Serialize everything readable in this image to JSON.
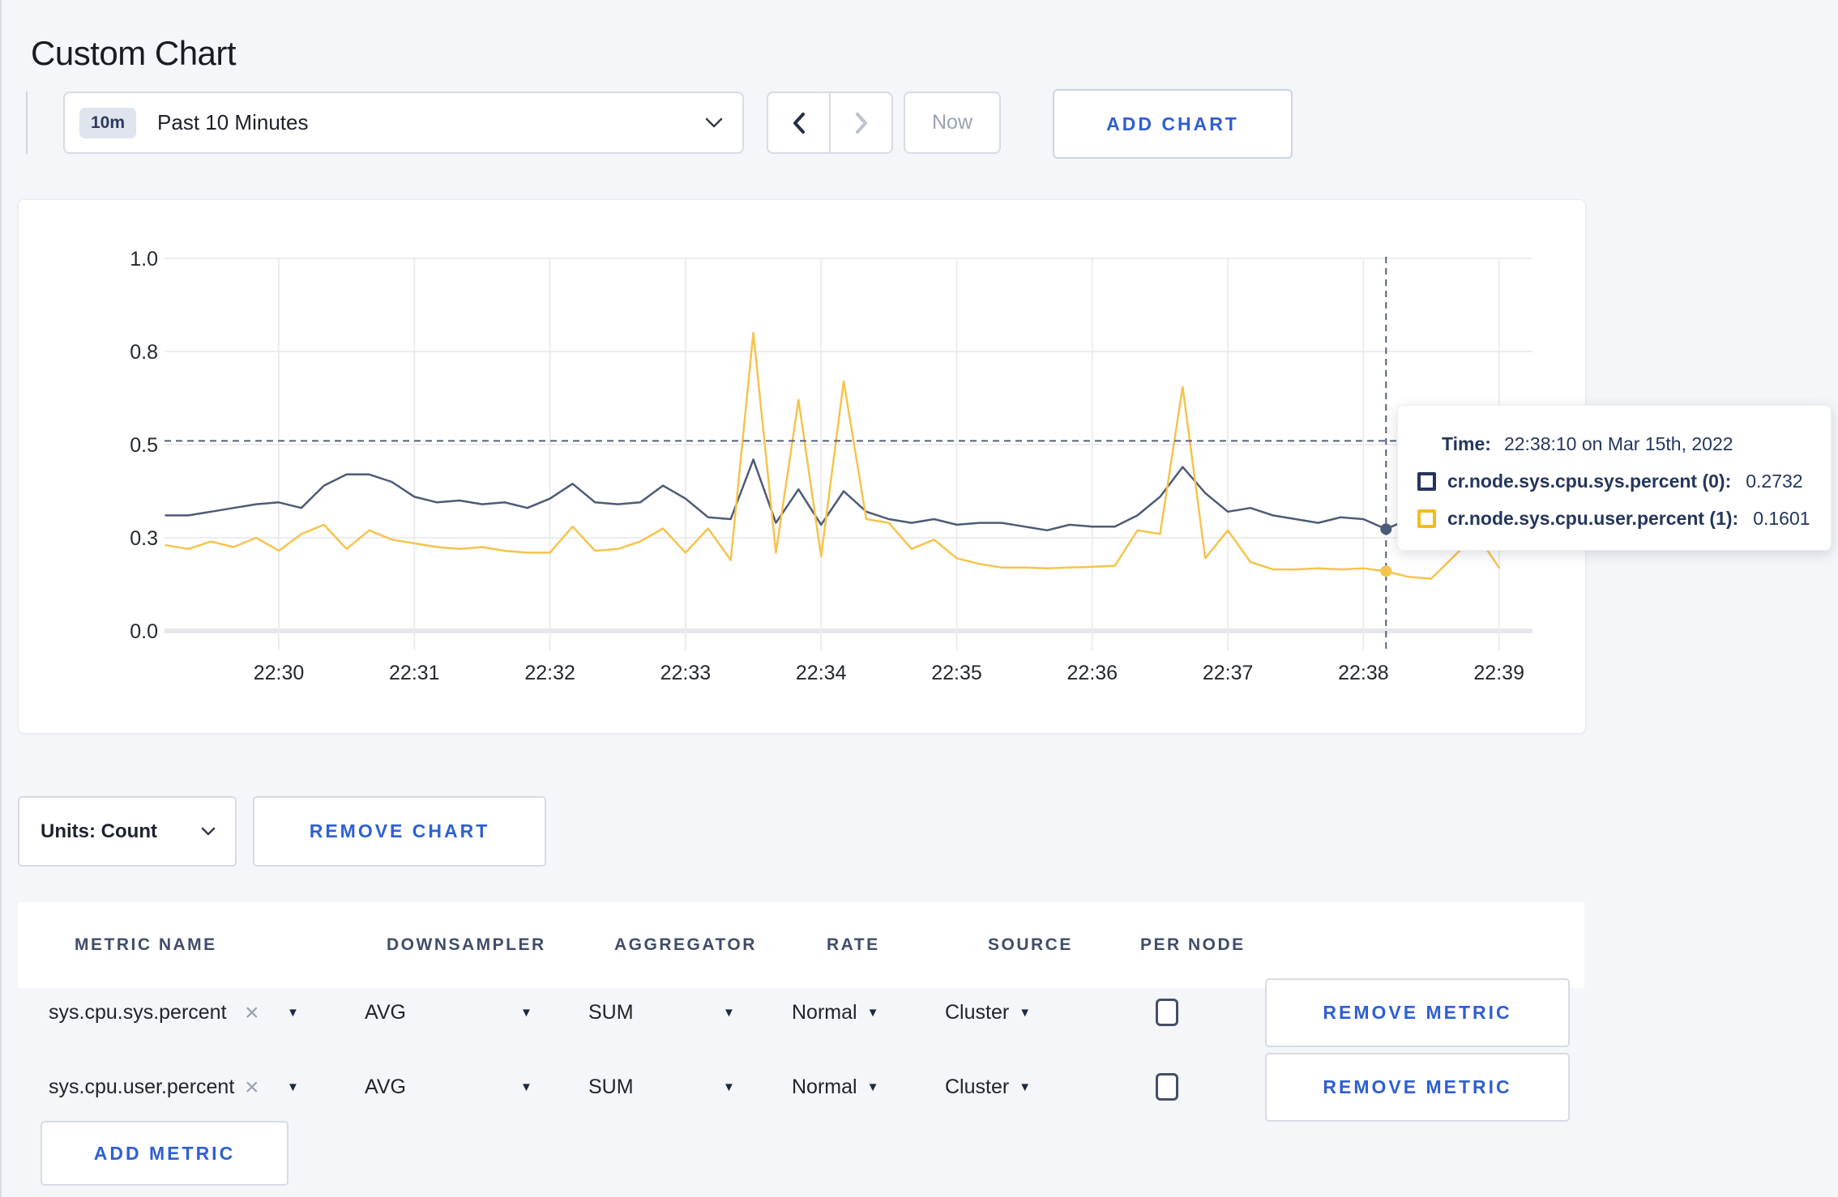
{
  "page_title": "Custom Chart",
  "toolbar": {
    "time_window_badge": "10m",
    "time_window_label": "Past 10 Minutes",
    "back_icon": "chevron-left",
    "forward_icon": "chevron-right",
    "now_label": "Now",
    "add_chart_label": "ADD CHART"
  },
  "chart_data": {
    "type": "line",
    "title": "",
    "xlabel": "",
    "ylabel": "",
    "ylim": [
      0,
      1
    ],
    "grid": true,
    "legend_position": "tooltip-only",
    "start_time": "22:29:10",
    "interval_seconds": 10,
    "first_tick_offset_seconds": 50,
    "x_ticks": [
      "22:30",
      "22:31",
      "22:32",
      "22:33",
      "22:34",
      "22:35",
      "22:36",
      "22:37",
      "22:38",
      "22:39"
    ],
    "y_ticks": [
      {
        "value": 0,
        "label": "0.0"
      },
      {
        "value": 0.25,
        "label": "0.3"
      },
      {
        "value": 0.5,
        "label": "0.5"
      },
      {
        "value": 0.75,
        "label": "0.8"
      },
      {
        "value": 1,
        "label": "1.0"
      }
    ],
    "series": [
      {
        "name": "cr.node.sys.cpu.sys.percent (0)",
        "color": "#4c5b77",
        "values": [
          0.31,
          0.31,
          0.32,
          0.33,
          0.34,
          0.345,
          0.33,
          0.39,
          0.42,
          0.42,
          0.4,
          0.36,
          0.345,
          0.35,
          0.34,
          0.345,
          0.33,
          0.355,
          0.395,
          0.345,
          0.34,
          0.345,
          0.39,
          0.355,
          0.305,
          0.3,
          0.46,
          0.29,
          0.38,
          0.285,
          0.375,
          0.32,
          0.3,
          0.29,
          0.3,
          0.285,
          0.29,
          0.29,
          0.28,
          0.27,
          0.285,
          0.28,
          0.28,
          0.31,
          0.36,
          0.44,
          0.37,
          0.32,
          0.33,
          0.31,
          0.3,
          0.29,
          0.305,
          0.3,
          0.2732,
          0.3,
          0.29,
          0.3,
          0.295,
          0.3
        ]
      },
      {
        "name": "cr.node.sys.cpu.user.percent (1)",
        "color": "#f6c34c",
        "values": [
          0.23,
          0.22,
          0.24,
          0.225,
          0.25,
          0.215,
          0.26,
          0.285,
          0.22,
          0.27,
          0.245,
          0.235,
          0.225,
          0.22,
          0.225,
          0.215,
          0.21,
          0.21,
          0.28,
          0.215,
          0.22,
          0.24,
          0.275,
          0.21,
          0.275,
          0.19,
          0.8,
          0.21,
          0.62,
          0.2,
          0.67,
          0.3,
          0.29,
          0.22,
          0.245,
          0.195,
          0.18,
          0.17,
          0.17,
          0.168,
          0.17,
          0.172,
          0.175,
          0.27,
          0.26,
          0.655,
          0.195,
          0.27,
          0.185,
          0.165,
          0.165,
          0.168,
          0.165,
          0.168,
          0.1601,
          0.145,
          0.14,
          0.2,
          0.26,
          0.17
        ]
      }
    ],
    "crosshair": {
      "time": "22:38:10",
      "seconds_from_start": 540,
      "hover_value": 0.51,
      "color": "#50617c",
      "points": [
        {
          "series": 0,
          "value": 0.2732
        },
        {
          "series": 1,
          "value": 0.1601
        }
      ]
    }
  },
  "tooltip": {
    "time_label": "Time:",
    "time_value": "22:38:10 on Mar 15th, 2022",
    "rows": [
      {
        "label": "cr.node.sys.cpu.sys.percent (0):",
        "value": "0.2732",
        "swatch_color": "#26345b"
      },
      {
        "label": "cr.node.sys.cpu.user.percent (1):",
        "value": "0.1601",
        "swatch_color": "#f5bb1d"
      }
    ]
  },
  "chart_controls": {
    "units_label": "Units: Count",
    "remove_chart_label": "REMOVE CHART"
  },
  "metrics_table": {
    "headers": [
      "METRIC NAME",
      "DOWNSAMPLER",
      "AGGREGATOR",
      "RATE",
      "SOURCE",
      "PER NODE"
    ],
    "rows": [
      {
        "metric_name": "sys.cpu.sys.percent",
        "downsampler": "AVG",
        "aggregator": "SUM",
        "rate": "Normal",
        "source": "Cluster",
        "per_node_checked": false,
        "remove_label": "REMOVE METRIC"
      },
      {
        "metric_name": "sys.cpu.user.percent",
        "downsampler": "AVG",
        "aggregator": "SUM",
        "rate": "Normal",
        "source": "Cluster",
        "per_node_checked": false,
        "remove_label": "REMOVE METRIC"
      }
    ],
    "add_metric_label": "ADD METRIC"
  }
}
